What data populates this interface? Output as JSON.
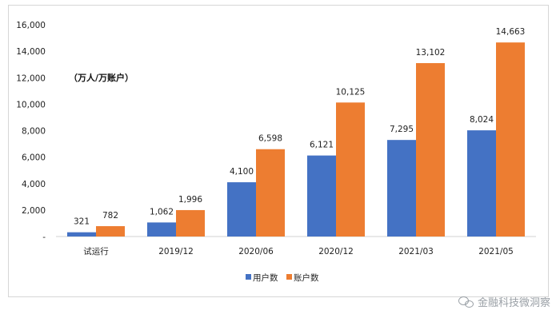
{
  "chart_data": {
    "type": "bar",
    "categories": [
      "试运行",
      "2019/12",
      "2020/06",
      "2020/12",
      "2021/03",
      "2021/05"
    ],
    "series": [
      {
        "name": "用户数",
        "color": "#4472c4",
        "values": [
          321,
          1062,
          4100,
          6121,
          7295,
          8024
        ],
        "labels": [
          "321",
          "1,062",
          "4,100",
          "6,121",
          "7,295",
          "8,024"
        ]
      },
      {
        "name": "账户数",
        "color": "#ed7d31",
        "values": [
          782,
          1996,
          6598,
          10125,
          13102,
          14663
        ],
        "labels": [
          "782",
          "1,996",
          "6,598",
          "10,125",
          "13,102",
          "14,663"
        ]
      }
    ],
    "ylim": [
      0,
      16000
    ],
    "yticks": [
      0,
      2000,
      4000,
      6000,
      8000,
      10000,
      12000,
      14000,
      16000
    ],
    "ytick_labels": [
      "-",
      "2,000",
      "4,000",
      "6,000",
      "8,000",
      "10,000",
      "12,000",
      "14,000",
      "16,000"
    ],
    "unit_label": "（万人/万账户）",
    "legend_position": "bottom",
    "grid": false
  },
  "watermark": "金融科技微洞察"
}
